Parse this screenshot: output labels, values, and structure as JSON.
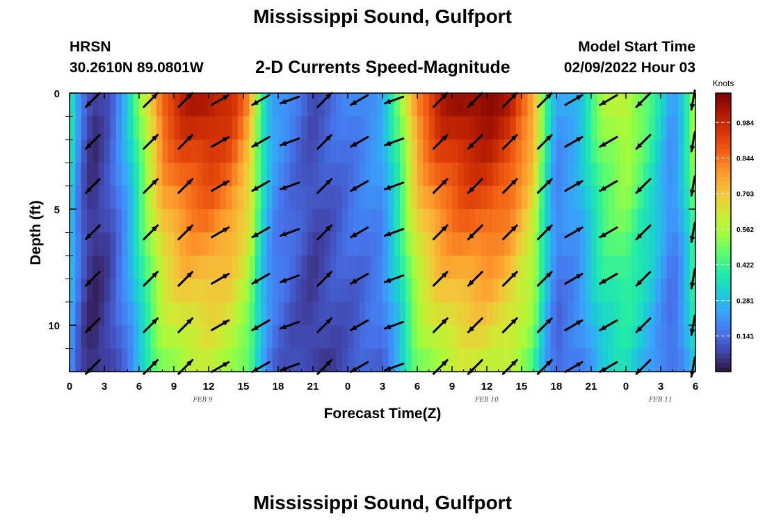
{
  "header": {
    "title": "Mississippi Sound, Gulfport",
    "model": "HRSN",
    "coordinates": "30.2610N  89.0801W",
    "subtitle": "2-D Currents Speed-Magnitude",
    "start_label": "Model Start Time",
    "start_value": "02/09/2022 Hour 03"
  },
  "footer": {
    "repeated_title": "Mississippi Sound, Gulfport"
  },
  "chart_data": {
    "type": "heatmap",
    "title": "2-D Currents Speed-Magnitude",
    "xlabel": "Forecast Time(Z)",
    "ylabel": "Depth (ft)",
    "x_range_hours": [
      0,
      54
    ],
    "x_tick_labels": [
      "0",
      "3",
      "6",
      "9",
      "12",
      "15",
      "18",
      "21",
      "0",
      "3",
      "6",
      "9",
      "12",
      "15",
      "18",
      "21",
      "0",
      "3",
      "6"
    ],
    "date_labels": [
      {
        "label": "FEB 9",
        "hour": 11.5
      },
      {
        "label": "FEB 10",
        "hour": 36
      },
      {
        "label": "FEB 11",
        "hour": 51
      }
    ],
    "y_range_ft": [
      0,
      12
    ],
    "y_tick_labels": [
      "0",
      "5",
      "10"
    ],
    "y_ticks_values": [
      0,
      5,
      10
    ],
    "colorbar": {
      "units": "Knots",
      "min": 0,
      "max": 1.1,
      "tick_labels": [
        "0.984",
        "0.844",
        "0.703",
        "0.562",
        "0.422",
        "0.281",
        "0.141"
      ],
      "tick_values": [
        0.984,
        0.844,
        0.703,
        0.562,
        0.422,
        0.281,
        0.141
      ],
      "colormap": [
        "#30123b",
        "#4145ab",
        "#4675ed",
        "#39a2fc",
        "#1bcfd4",
        "#24eca6",
        "#61fc6c",
        "#a4fc3b",
        "#d1e834",
        "#f3c63a",
        "#fe9b2d",
        "#f36315",
        "#d93806",
        "#b11901",
        "#7a0403"
      ]
    },
    "surface_speed_profile_knots": [
      {
        "hour": 0,
        "speed": 0.42
      },
      {
        "hour": 1,
        "speed": 0.15
      },
      {
        "hour": 2,
        "speed": 0.05
      },
      {
        "hour": 3.5,
        "speed": 0.12
      },
      {
        "hour": 5,
        "speed": 0.3
      },
      {
        "hour": 6.5,
        "speed": 0.6
      },
      {
        "hour": 8,
        "speed": 0.9
      },
      {
        "hour": 10,
        "speed": 1.02
      },
      {
        "hour": 12,
        "speed": 1.05
      },
      {
        "hour": 14,
        "speed": 0.98
      },
      {
        "hour": 15.5,
        "speed": 0.8
      },
      {
        "hour": 16.5,
        "speed": 0.45
      },
      {
        "hour": 17.5,
        "speed": 0.25
      },
      {
        "hour": 19,
        "speed": 0.18
      },
      {
        "hour": 21,
        "speed": 0.1
      },
      {
        "hour": 23,
        "speed": 0.15
      },
      {
        "hour": 25,
        "speed": 0.2
      },
      {
        "hour": 27,
        "speed": 0.25
      },
      {
        "hour": 28.5,
        "speed": 0.5
      },
      {
        "hour": 30,
        "speed": 0.85
      },
      {
        "hour": 32,
        "speed": 1.02
      },
      {
        "hour": 34,
        "speed": 1.08
      },
      {
        "hour": 36,
        "speed": 1.1
      },
      {
        "hour": 38,
        "speed": 1.02
      },
      {
        "hour": 40,
        "speed": 0.8
      },
      {
        "hour": 41,
        "speed": 0.45
      },
      {
        "hour": 42,
        "speed": 0.22
      },
      {
        "hour": 44,
        "speed": 0.3
      },
      {
        "hour": 46,
        "speed": 0.55
      },
      {
        "hour": 48,
        "speed": 0.62
      },
      {
        "hour": 50,
        "speed": 0.45
      },
      {
        "hour": 52,
        "speed": 0.22
      },
      {
        "hour": 53,
        "speed": 0.35
      },
      {
        "hour": 54,
        "speed": 0.62
      }
    ],
    "vector_columns_hours": [
      2,
      7,
      10,
      13,
      16.5,
      19,
      22,
      25,
      28,
      32,
      35,
      38,
      41,
      43.5,
      46.5,
      49.5,
      53.8
    ],
    "vector_rows_ft": [
      0.3,
      2.1,
      4.0,
      6.0,
      8.0,
      10.0,
      11.8
    ],
    "vector_directions_deg": [
      225,
      45,
      45,
      30,
      210,
      200,
      45,
      210,
      200,
      45,
      225,
      45,
      45,
      30,
      210,
      225,
      260
    ]
  }
}
